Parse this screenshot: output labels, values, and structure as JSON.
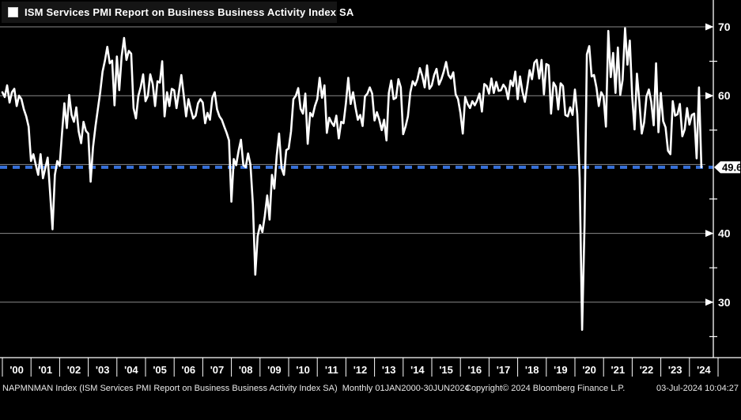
{
  "title": {
    "legend_swatch": "white-square",
    "text": "ISM Services PMI Report on Business Business Activity Index SA"
  },
  "footer": {
    "left": "NAPMNMAN Index (ISM Services PMI Report on Business Business Activity Index SA)  Monthly 01JAN2000-30JUN2024",
    "center": "Copyright© 2024 Bloomberg Finance L.P.",
    "right": "03-Jul-2024 10:04:27"
  },
  "colors": {
    "background": "#000000",
    "titlebar_bg": "#151515",
    "line": "#ffffff",
    "grid": "#8a8a8a",
    "axis": "#ffffff",
    "last_value_line": "#3670d9",
    "tag_bg": "#ffffff",
    "tag_text": "#000000"
  },
  "chart_data": {
    "type": "line",
    "title": "ISM Services PMI Report on Business Business Activity Index SA",
    "frequency": "Monthly",
    "date_range": "01JAN2000-30JUN2024",
    "legend_position": "top-left",
    "grid": true,
    "x_axis": {
      "labels": [
        "'00",
        "'01",
        "'02",
        "'03",
        "'04",
        "'05",
        "'06",
        "'07",
        "'08",
        "'09",
        "'10",
        "'11",
        "'12",
        "'13",
        "'14",
        "'15",
        "'16",
        "'17",
        "'18",
        "'19",
        "'20",
        "'21",
        "'22",
        "'23",
        "'24"
      ],
      "start": "2000-01",
      "end": "2024-06"
    },
    "y_axis": {
      "side": "right",
      "major_ticks": [
        70,
        60,
        40,
        30
      ],
      "minor_ticks": [
        65,
        55,
        45,
        35,
        25
      ],
      "gridlines": [
        70,
        60,
        50,
        40,
        30
      ],
      "top_value": 70,
      "bottom_value": 22.2
    },
    "last_value": 49.6,
    "last_value_label": "49.6",
    "series": [
      {
        "name": "NAPMNMAN Index",
        "values": [
          60.5,
          59.8,
          61.5,
          59.0,
          60.5,
          61.0,
          58.5,
          60.0,
          59.5,
          58.0,
          57.0,
          55.5,
          50.5,
          51.5,
          50.0,
          48.5,
          51.5,
          48.0,
          49.5,
          51.0,
          46.0,
          40.6,
          48.5,
          50.5,
          49.8,
          54.5,
          58.9,
          55.3,
          60.1,
          57.2,
          56.2,
          58.3,
          54.8,
          53.1,
          56.2,
          54.9,
          54.5,
          47.5,
          52.5,
          55.5,
          58.0,
          60.5,
          63.5,
          65.1,
          67.1,
          64.7,
          65.1,
          58.6,
          65.7,
          60.8,
          65.7,
          68.4,
          65.2,
          66.5,
          66.1,
          58.2,
          56.7,
          60.0,
          61.3,
          63.1,
          59.2,
          60.0,
          63.1,
          61.7,
          58.5,
          62.1,
          61.9,
          65.0,
          57.0,
          60.5,
          58.5,
          61.0,
          60.8,
          58.2,
          60.5,
          63.0,
          60.1,
          57.0,
          59.5,
          58.0,
          56.7,
          57.1,
          58.9,
          59.5,
          59.0,
          56.0,
          57.5,
          56.5,
          59.7,
          60.5,
          58.0,
          57.0,
          56.5,
          55.5,
          54.6,
          53.5,
          44.6,
          50.8,
          49.9,
          52.0,
          53.6,
          49.9,
          49.6,
          51.6,
          50.0,
          44.2,
          34.0,
          39.6,
          41.2,
          40.2,
          42.5,
          45.5,
          42.0,
          48.5,
          46.5,
          51.3,
          54.5,
          49.5,
          48.5,
          52.1,
          52.3,
          54.8,
          59.5,
          60.0,
          61.1,
          58.1,
          57.4,
          60.3,
          53.0,
          57.5,
          57.0,
          58.5,
          59.5,
          62.6,
          59.7,
          61.5,
          54.6,
          56.8,
          56.1,
          55.6,
          57.1,
          53.8,
          56.2,
          56.0,
          58.9,
          62.6,
          58.8,
          60.5,
          58.3,
          56.5,
          57.2,
          55.6,
          59.9,
          60.3,
          61.2,
          60.3,
          56.4,
          57.6,
          56.5,
          55.0,
          56.5,
          53.5,
          60.4,
          62.2,
          59.5,
          59.7,
          62.4,
          61.2,
          54.4,
          55.5,
          57.0,
          60.5,
          62.1,
          61.5,
          62.4,
          64.0,
          62.9,
          61.2,
          64.4,
          61.0,
          61.5,
          63.0,
          63.9,
          61.6,
          62.4,
          63.5,
          64.9,
          63.0,
          62.5,
          63.4,
          60.2,
          59.5,
          57.5,
          54.5,
          59.8,
          58.8,
          58.2,
          59.2,
          58.6,
          59.3,
          60.3,
          57.7,
          61.7,
          61.4,
          60.3,
          62.5,
          60.4,
          62.0,
          60.7,
          60.8,
          61.6,
          61.1,
          59.5,
          62.2,
          61.4,
          63.5,
          59.5,
          62.8,
          60.6,
          59.1,
          61.3,
          63.7,
          62.4,
          64.8,
          65.2,
          62.5,
          65.2,
          60.2,
          64.6,
          64.4,
          57.4,
          61.9,
          61.3,
          58.0,
          61.8,
          61.4,
          57.2,
          57.0,
          58.3,
          57.2,
          60.9,
          57.3,
          48.0,
          26.0,
          41.0,
          66.0,
          67.2,
          62.8,
          63.0,
          61.2,
          58.5,
          60.5,
          59.9,
          55.5,
          69.4,
          62.7,
          66.2,
          60.4,
          67.0,
          60.1,
          62.3,
          69.8,
          64.5,
          68.0,
          59.9,
          55.1,
          63.2,
          59.1,
          54.5,
          56.1,
          59.9,
          60.9,
          59.1,
          55.7,
          64.7,
          54.7,
          60.4,
          56.3,
          55.4,
          52.0,
          51.5,
          59.2,
          57.1,
          57.3,
          58.8,
          54.1,
          55.1,
          58.2,
          55.8,
          57.2,
          57.4,
          50.9,
          61.2,
          49.6
        ]
      }
    ]
  }
}
